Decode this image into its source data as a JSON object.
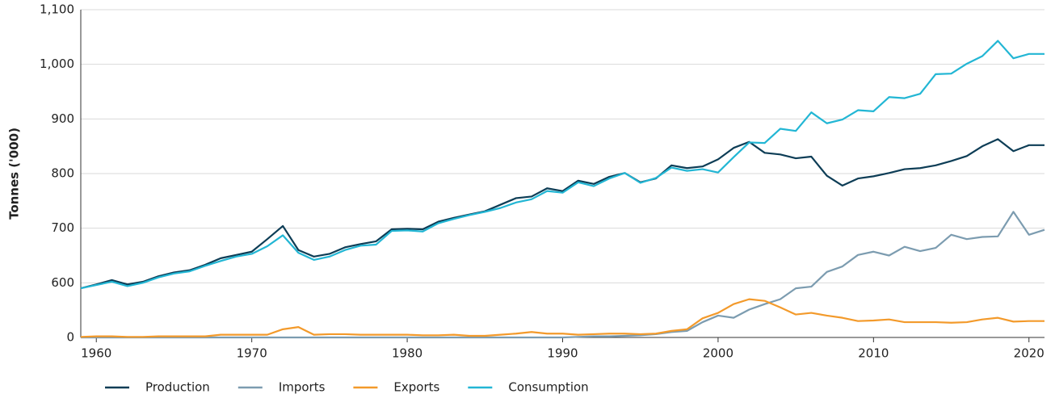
{
  "chart_data": {
    "type": "line",
    "y_label": "Tonnes ('000)",
    "x": [
      1959,
      1960,
      1961,
      1962,
      1963,
      1964,
      1965,
      1966,
      1967,
      1968,
      1969,
      1970,
      1971,
      1972,
      1973,
      1974,
      1975,
      1976,
      1977,
      1978,
      1979,
      1980,
      1981,
      1982,
      1983,
      1984,
      1985,
      1986,
      1987,
      1988,
      1989,
      1990,
      1991,
      1992,
      1993,
      1994,
      1995,
      1996,
      1997,
      1998,
      1999,
      2000,
      2001,
      2002,
      2003,
      2004,
      2005,
      2006,
      2007,
      2008,
      2009,
      2010,
      2011,
      2012,
      2013,
      2014,
      2015,
      2016,
      2017,
      2018,
      2019,
      2020,
      2021
    ],
    "xlim": [
      1959,
      2021
    ],
    "xticks": [
      1960,
      1970,
      1980,
      1990,
      2000,
      2010,
      2020
    ],
    "ylim": [
      500,
      1100
    ],
    "yticks": [
      600,
      700,
      800,
      900,
      {
        "value": 1000,
        "label": "1,000"
      },
      {
        "value": 1100,
        "label": "1,100"
      }
    ],
    "y2lim": [
      0,
      600
    ],
    "y2ticks": [
      0
    ],
    "grid": true,
    "legend": "bottom",
    "series": [
      {
        "name": "Production",
        "color": "#0d3d56",
        "values": [
          590,
          597,
          605,
          597,
          602,
          612,
          619,
          623,
          633,
          645,
          651,
          657,
          680,
          704,
          660,
          648,
          653,
          665,
          671,
          676,
          698,
          699,
          698,
          712,
          719,
          725,
          731,
          743,
          755,
          758,
          773,
          768,
          787,
          781,
          794,
          801,
          784,
          791,
          815,
          810,
          813,
          826,
          847,
          858,
          838,
          835,
          828,
          831,
          796,
          778,
          791,
          795,
          801,
          808,
          810,
          815,
          823,
          832,
          850,
          863,
          841,
          852,
          852
        ]
      },
      {
        "name": "Imports",
        "color": "#7c9cb0",
        "axis": "y2",
        "values": [
          0,
          0,
          0,
          0,
          0,
          0,
          0,
          0,
          0,
          0,
          0,
          0,
          0,
          0,
          0,
          0,
          0,
          0,
          0,
          0,
          0,
          0,
          0,
          0,
          0,
          0,
          0,
          0,
          0,
          0,
          0,
          0,
          1,
          2,
          2,
          3,
          4,
          6,
          10,
          12,
          28,
          40,
          36,
          51,
          61,
          70,
          90,
          93,
          120,
          130,
          151,
          157,
          150,
          166,
          158,
          164,
          188,
          180,
          184,
          185,
          230,
          188,
          197
        ]
      },
      {
        "name": "Exports",
        "color": "#f39a2b",
        "axis": "y2",
        "values": [
          1,
          2,
          2,
          1,
          1,
          2,
          2,
          2,
          2,
          5,
          5,
          5,
          5,
          15,
          19,
          5,
          6,
          6,
          5,
          5,
          5,
          5,
          4,
          4,
          5,
          3,
          3,
          5,
          7,
          10,
          7,
          7,
          5,
          6,
          7,
          7,
          6,
          7,
          12,
          15,
          35,
          45,
          61,
          70,
          67,
          55,
          42,
          45,
          40,
          36,
          30,
          31,
          33,
          28,
          28,
          28,
          27,
          28,
          33,
          36,
          29,
          30,
          30
        ]
      },
      {
        "name": "Consumption",
        "color": "#22b6d4",
        "values": [
          590,
          596,
          602,
          594,
          600,
          610,
          617,
          621,
          631,
          640,
          648,
          653,
          667,
          687,
          655,
          642,
          648,
          660,
          668,
          670,
          695,
          696,
          694,
          709,
          717,
          724,
          730,
          737,
          747,
          753,
          768,
          765,
          784,
          777,
          791,
          801,
          783,
          792,
          811,
          805,
          808,
          802,
          830,
          857,
          856,
          882,
          878,
          912,
          892,
          899,
          916,
          914,
          940,
          938,
          946,
          982,
          983,
          1001,
          1015,
          1043,
          1011,
          1019,
          1019
        ]
      }
    ]
  }
}
